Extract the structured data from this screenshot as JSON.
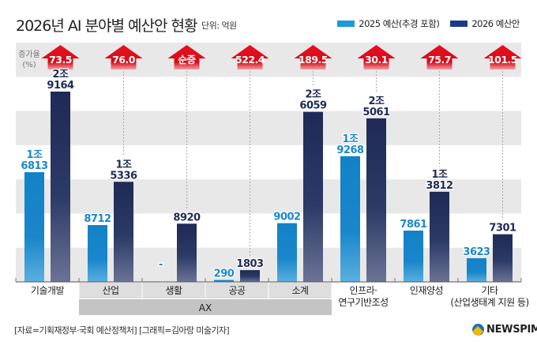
{
  "header": {
    "title": "2026년 AI 분야별 예산안 현황",
    "unit": "단위: 억원"
  },
  "legend": [
    {
      "label": "2025 예산(추경 포함)",
      "color": "#1a9ad6"
    },
    {
      "label": "2026 예산안",
      "color": "#1d3a8a"
    }
  ],
  "increase_label_line1": "증가율",
  "increase_label_line2": "(%)",
  "group_label": "AX",
  "footer": {
    "source": "[자료=기획재정부·국회 예산정책처] [그래픽=김아랑 미술기자]",
    "logo": "NEWSPIM"
  },
  "colors": {
    "bar2025": "#1282c8",
    "bar2026": "#1f2a55",
    "arrow": "#e0101e",
    "label2025": "#1a88cc",
    "label2026": "#1f2a55",
    "band": "#e8e8e8",
    "axbox": "#c4c4c4",
    "subbox": "#dedede"
  },
  "chart_data": {
    "type": "bar",
    "title": "2026년 AI 분야별 예산안 현황",
    "unit": "억원",
    "xlabel": "",
    "ylabel": "",
    "ylim": [
      0,
      33000
    ],
    "grid": "alternating horizontal bands",
    "legend_position": "top-right",
    "categories": [
      "기술개발",
      "산업",
      "생활",
      "공공",
      "소계",
      "인프라·연구기반조성",
      "인재양성",
      "기타(산업생태계 지원 등)"
    ],
    "category_lines": [
      [
        "기술개발"
      ],
      [
        "산업"
      ],
      [
        "생활"
      ],
      [
        "공공"
      ],
      [
        "소계"
      ],
      [
        "인프라·",
        "연구기반조성"
      ],
      [
        "인재양성"
      ],
      [
        "기타",
        "(산업생태계 지원 등)"
      ]
    ],
    "ax_group": [
      "산업",
      "생활",
      "공공",
      "소계"
    ],
    "series": [
      {
        "name": "2025 예산(추경 포함)",
        "values": [
          16813,
          8712,
          0,
          290,
          9002,
          19268,
          7861,
          3623
        ],
        "labels": [
          [
            "1조",
            "6813"
          ],
          [
            "8712"
          ],
          [
            "-"
          ],
          [
            "290"
          ],
          [
            "9002"
          ],
          [
            "1조",
            "9268"
          ],
          [
            "7861"
          ],
          [
            "3623"
          ]
        ]
      },
      {
        "name": "2026 예산안",
        "values": [
          29164,
          15336,
          8920,
          1803,
          26059,
          25061,
          13812,
          7301
        ],
        "labels": [
          [
            "2조",
            "9164"
          ],
          [
            "1조",
            "5336"
          ],
          [
            "8920"
          ],
          [
            "1803"
          ],
          [
            "2조",
            "6059"
          ],
          [
            "2조",
            "5061"
          ],
          [
            "1조",
            "3812"
          ],
          [
            "7301"
          ]
        ]
      }
    ],
    "increase_rate": [
      "73.5",
      "76.0",
      "순증",
      "522.4",
      "189.5",
      "30.1",
      "75.7",
      "101.5"
    ]
  }
}
